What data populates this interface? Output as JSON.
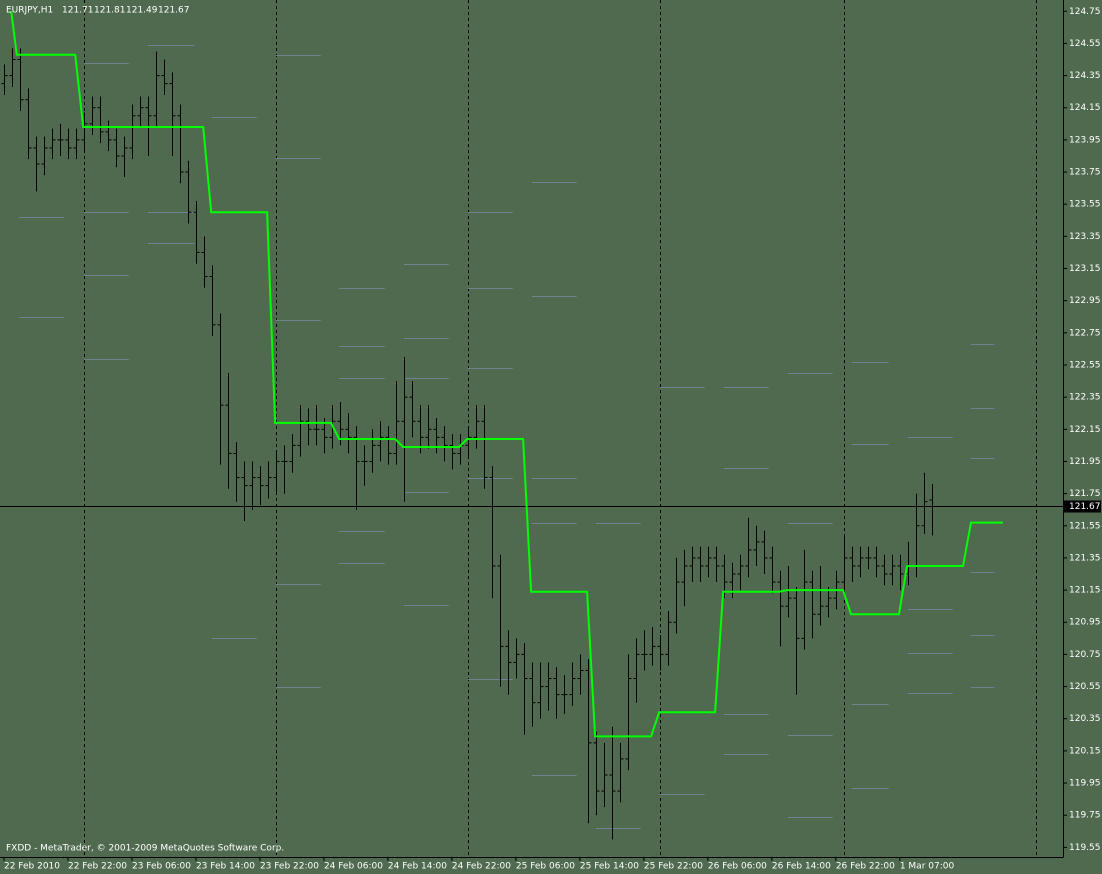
{
  "chart_data": {
    "type": "ohlc",
    "symbol": "EURJPY,H1",
    "copyright": "FXDD - MetaTrader, © 2001-2009 MetaQuotes Software Corp.",
    "bar_color": "#000000",
    "line_color": "#00ff00",
    "level_color": "#6f8194",
    "grid": true,
    "xlim": [
      -0.5,
      132.4
    ],
    "ylim": [
      119.49,
      124.82
    ],
    "yticks": [
      124.75,
      124.55,
      124.35,
      124.15,
      123.95,
      123.75,
      123.55,
      123.35,
      123.15,
      122.95,
      122.75,
      122.55,
      122.35,
      122.15,
      121.95,
      121.75,
      121.55,
      121.35,
      121.15,
      120.95,
      120.75,
      120.55,
      120.35,
      120.15,
      119.95,
      119.75,
      119.55
    ],
    "xticks": [
      {
        "value": 0,
        "label": "22 Feb 2010"
      },
      {
        "value": 8,
        "label": "22 Feb 22:00"
      },
      {
        "value": 16,
        "label": "23 Feb 06:00"
      },
      {
        "value": 24,
        "label": "23 Feb 14:00"
      },
      {
        "value": 32,
        "label": "23 Feb 22:00"
      },
      {
        "value": 40,
        "label": "24 Feb 06:00"
      },
      {
        "value": 48,
        "label": "24 Feb 14:00"
      },
      {
        "value": 56,
        "label": "24 Feb 22:00"
      },
      {
        "value": 64,
        "label": "25 Feb 06:00"
      },
      {
        "value": 72,
        "label": "25 Feb 14:00"
      },
      {
        "value": 80,
        "label": "25 Feb 22:00"
      },
      {
        "value": 88,
        "label": "26 Feb 06:00"
      },
      {
        "value": 96,
        "label": "26 Feb 14:00"
      },
      {
        "value": 104,
        "label": "26 Feb 22:00"
      },
      {
        "value": 112,
        "label": "1 Mar 07:00"
      }
    ],
    "day_separators": [
      10,
      34,
      58,
      82,
      105,
      129
    ],
    "bars": [
      [
        124.3,
        124.42,
        124.23,
        124.35
      ],
      [
        124.35,
        124.52,
        124.28,
        124.45
      ],
      [
        124.45,
        124.52,
        124.13,
        124.2
      ],
      [
        124.2,
        124.27,
        123.83,
        123.9
      ],
      [
        123.9,
        123.97,
        123.63,
        123.8
      ],
      [
        123.8,
        123.97,
        123.73,
        123.9
      ],
      [
        123.9,
        124.02,
        123.83,
        123.95
      ],
      [
        123.95,
        124.05,
        123.85,
        123.95
      ],
      [
        123.95,
        124.02,
        123.83,
        123.9
      ],
      [
        123.9,
        124.02,
        123.83,
        123.95
      ],
      [
        123.95,
        124.12,
        123.88,
        124.05
      ],
      [
        124.05,
        124.22,
        123.98,
        124.15
      ],
      [
        124.15,
        124.22,
        123.93,
        124.0
      ],
      [
        124.0,
        124.07,
        123.88,
        123.95
      ],
      [
        123.95,
        124.02,
        123.78,
        123.85
      ],
      [
        123.85,
        123.97,
        123.72,
        123.9
      ],
      [
        123.9,
        124.17,
        123.83,
        124.1
      ],
      [
        124.1,
        124.22,
        124.03,
        124.15
      ],
      [
        124.15,
        124.22,
        123.85,
        124.1
      ],
      [
        124.1,
        124.5,
        124.03,
        124.35
      ],
      [
        124.35,
        124.45,
        124.23,
        124.3
      ],
      [
        124.3,
        124.37,
        123.85,
        124.1
      ],
      [
        124.1,
        124.17,
        123.68,
        123.75
      ],
      [
        123.75,
        123.82,
        123.43,
        123.5
      ],
      [
        123.5,
        123.57,
        123.18,
        123.25
      ],
      [
        123.25,
        123.35,
        123.03,
        123.1
      ],
      [
        123.1,
        123.17,
        122.73,
        122.8
      ],
      [
        122.8,
        122.87,
        121.93,
        122.3
      ],
      [
        122.3,
        122.5,
        121.78,
        122.0
      ],
      [
        122.0,
        122.07,
        121.7,
        121.85
      ],
      [
        121.85,
        121.95,
        121.58,
        121.8
      ],
      [
        121.8,
        121.95,
        121.65,
        121.85
      ],
      [
        121.85,
        121.92,
        121.68,
        121.8
      ],
      [
        121.8,
        121.95,
        121.72,
        121.85
      ],
      [
        121.85,
        122.02,
        121.75,
        121.95
      ],
      [
        121.95,
        122.05,
        121.75,
        121.95
      ],
      [
        121.95,
        122.12,
        121.88,
        122.05
      ],
      [
        122.05,
        122.3,
        121.98,
        122.2
      ],
      [
        122.2,
        122.28,
        122.05,
        122.15
      ],
      [
        122.15,
        122.3,
        122.05,
        122.15
      ],
      [
        122.15,
        122.22,
        122.0,
        122.1
      ],
      [
        122.1,
        122.3,
        122.03,
        122.2
      ],
      [
        122.2,
        122.32,
        122.05,
        122.15
      ],
      [
        122.15,
        122.25,
        122.0,
        122.1
      ],
      [
        122.1,
        122.17,
        121.65,
        121.95
      ],
      [
        121.95,
        122.05,
        121.8,
        121.95
      ],
      [
        121.95,
        122.15,
        121.88,
        122.05
      ],
      [
        122.05,
        122.2,
        121.95,
        122.1
      ],
      [
        122.1,
        122.17,
        121.93,
        122.0
      ],
      [
        122.0,
        122.45,
        121.93,
        122.2
      ],
      [
        122.2,
        122.6,
        121.7,
        122.35
      ],
      [
        122.35,
        122.45,
        122.1,
        122.2
      ],
      [
        122.2,
        122.3,
        122.0,
        122.1
      ],
      [
        122.1,
        122.3,
        122.03,
        122.15
      ],
      [
        122.15,
        122.22,
        122.0,
        122.1
      ],
      [
        122.1,
        122.17,
        121.95,
        122.05
      ],
      [
        122.05,
        122.12,
        121.9,
        122.0
      ],
      [
        122.0,
        122.12,
        121.93,
        122.05
      ],
      [
        122.05,
        122.17,
        121.98,
        122.1
      ],
      [
        122.1,
        122.3,
        122.03,
        122.2
      ],
      [
        122.2,
        122.3,
        121.78,
        121.85
      ],
      [
        121.85,
        121.92,
        121.1,
        121.3
      ],
      [
        121.3,
        121.37,
        120.55,
        120.8
      ],
      [
        120.8,
        120.9,
        120.5,
        120.7
      ],
      [
        120.7,
        120.85,
        120.6,
        120.75
      ],
      [
        120.75,
        120.82,
        120.25,
        120.6
      ],
      [
        120.6,
        120.7,
        120.3,
        120.45
      ],
      [
        120.45,
        120.7,
        120.35,
        120.55
      ],
      [
        120.55,
        120.7,
        120.4,
        120.6
      ],
      [
        120.6,
        120.67,
        120.35,
        120.5
      ],
      [
        120.5,
        120.62,
        120.38,
        120.5
      ],
      [
        120.5,
        120.7,
        120.43,
        120.6
      ],
      [
        120.6,
        120.75,
        120.5,
        120.65
      ],
      [
        120.65,
        120.72,
        119.7,
        120.2
      ],
      [
        120.2,
        120.27,
        119.75,
        119.9
      ],
      [
        119.9,
        120.2,
        119.8,
        120.0
      ],
      [
        120.0,
        120.3,
        119.6,
        119.9
      ],
      [
        119.9,
        120.2,
        119.83,
        120.1
      ],
      [
        120.1,
        120.75,
        120.03,
        120.6
      ],
      [
        120.6,
        120.85,
        120.45,
        120.75
      ],
      [
        120.75,
        120.9,
        120.65,
        120.75
      ],
      [
        120.75,
        120.92,
        120.68,
        120.8
      ],
      [
        120.8,
        120.87,
        120.65,
        120.75
      ],
      [
        120.75,
        121.02,
        120.68,
        120.95
      ],
      [
        120.95,
        121.35,
        120.88,
        121.2
      ],
      [
        121.2,
        121.4,
        121.05,
        121.3
      ],
      [
        121.3,
        121.42,
        121.2,
        121.35
      ],
      [
        121.35,
        121.42,
        121.2,
        121.3
      ],
      [
        121.3,
        121.42,
        121.23,
        121.35
      ],
      [
        121.35,
        121.42,
        121.2,
        121.3
      ],
      [
        121.3,
        121.37,
        121.1,
        121.2
      ],
      [
        121.2,
        121.32,
        121.1,
        121.25
      ],
      [
        121.25,
        121.37,
        121.15,
        121.3
      ],
      [
        121.3,
        121.6,
        121.23,
        121.4
      ],
      [
        121.4,
        121.55,
        121.3,
        121.45
      ],
      [
        121.45,
        121.52,
        121.25,
        121.35
      ],
      [
        121.35,
        121.42,
        121.13,
        121.2
      ],
      [
        121.2,
        121.27,
        120.8,
        121.05
      ],
      [
        121.05,
        121.3,
        120.98,
        121.1
      ],
      [
        121.1,
        121.17,
        120.5,
        120.85
      ],
      [
        120.85,
        121.4,
        120.78,
        121.2
      ],
      [
        121.2,
        121.27,
        120.85,
        121.0
      ],
      [
        121.0,
        121.3,
        120.93,
        121.05
      ],
      [
        121.05,
        121.17,
        120.98,
        121.1
      ],
      [
        121.1,
        121.27,
        121.03,
        121.2
      ],
      [
        121.2,
        121.5,
        121.13,
        121.35
      ],
      [
        121.35,
        121.42,
        121.2,
        121.3
      ],
      [
        121.3,
        121.42,
        121.23,
        121.35
      ],
      [
        121.35,
        121.42,
        121.28,
        121.35
      ],
      [
        121.35,
        121.42,
        121.23,
        121.3
      ],
      [
        121.3,
        121.37,
        121.18,
        121.25
      ],
      [
        121.25,
        121.37,
        121.18,
        121.3
      ],
      [
        121.3,
        121.37,
        121.15,
        121.25
      ],
      [
        121.25,
        121.45,
        121.18,
        121.3
      ],
      [
        121.3,
        121.75,
        121.23,
        121.55
      ],
      [
        121.55,
        121.88,
        121.5,
        121.7
      ],
      [
        121.71,
        121.81,
        121.49,
        121.67
      ]
    ],
    "step_line": {
      "x": [
        0.9,
        1.6,
        8.9,
        9.9,
        24.9,
        25.9,
        32.9,
        33.9,
        40.9,
        41.9,
        48.9,
        49.9,
        56.9,
        57.9,
        64.9,
        65.9,
        72.9,
        73.9,
        80.9,
        81.9,
        88.9,
        89.9,
        96.9,
        97.9,
        104.9,
        105.9,
        111.9,
        112.9,
        119.9,
        120.9,
        124.9
      ],
      "values": [
        124.75,
        124.48,
        124.48,
        124.03,
        124.03,
        123.5,
        123.5,
        122.19,
        122.19,
        122.09,
        122.09,
        122.04,
        122.04,
        122.09,
        122.09,
        121.14,
        121.14,
        120.24,
        120.24,
        120.39,
        120.39,
        121.14,
        121.14,
        121.15,
        121.15,
        121.0,
        121.0,
        121.3,
        121.3,
        121.57,
        121.57
      ]
    },
    "levels": [
      {
        "from": 1.9,
        "to": 7.5,
        "prices": [
          123.47,
          122.85
        ]
      },
      {
        "from": 10,
        "to": 15.6,
        "prices": [
          124.43,
          123.5,
          123.11,
          122.59
        ]
      },
      {
        "from": 18,
        "to": 23.8,
        "prices": [
          124.54,
          123.5,
          123.31
        ]
      },
      {
        "from": 26,
        "to": 31.6,
        "prices": [
          124.09,
          120.85
        ]
      },
      {
        "from": 34,
        "to": 39.6,
        "prices": [
          124.48,
          123.84,
          122.83,
          121.19,
          120.55
        ]
      },
      {
        "from": 41.9,
        "to": 47.6,
        "prices": [
          123.03,
          122.67,
          122.47,
          121.52,
          121.32
        ]
      },
      {
        "from": 50,
        "to": 55.6,
        "prices": [
          123.18,
          122.72,
          122.47,
          121.76,
          121.06
        ]
      },
      {
        "from": 58,
        "to": 63.6,
        "prices": [
          123.5,
          123.03,
          122.53,
          121.85,
          120.6
        ]
      },
      {
        "from": 66,
        "to": 71.6,
        "prices": [
          123.69,
          122.98,
          121.85,
          121.57,
          120.0
        ]
      },
      {
        "from": 74,
        "to": 79.6,
        "prices": [
          121.57,
          119.67
        ]
      },
      {
        "from": 82,
        "to": 87.6,
        "prices": [
          122.41,
          121.67,
          119.88
        ]
      },
      {
        "from": 90,
        "to": 95.6,
        "prices": [
          122.41,
          121.91,
          120.38,
          120.13
        ]
      },
      {
        "from": 98,
        "to": 103.6,
        "prices": [
          122.5,
          121.57,
          120.25,
          119.74
        ]
      },
      {
        "from": 106,
        "to": 110.6,
        "prices": [
          122.57,
          122.06,
          120.44,
          119.92
        ]
      },
      {
        "from": 113,
        "to": 118.6,
        "prices": [
          122.1,
          121.03,
          120.76,
          120.51
        ]
      },
      {
        "from": 120.9,
        "to": 123.8,
        "prices": [
          122.68,
          122.28,
          121.97,
          121.26,
          120.87,
          120.55
        ]
      }
    ]
  }
}
